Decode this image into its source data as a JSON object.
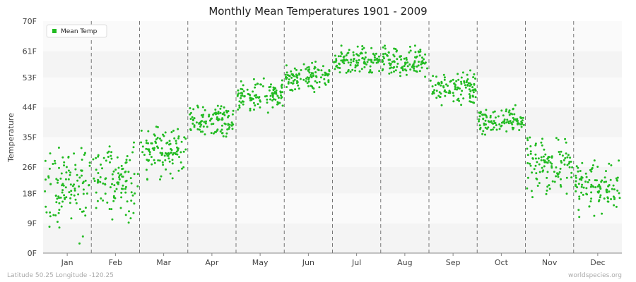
{
  "chart_data": {
    "type": "scatter",
    "title": "Monthly Mean Temperatures 1901 - 2009",
    "ylabel": "Temperature",
    "xlabel": "",
    "categories": [
      "Jan",
      "Feb",
      "Mar",
      "Apr",
      "May",
      "Jun",
      "Jul",
      "Aug",
      "Sep",
      "Oct",
      "Nov",
      "Dec"
    ],
    "y_ticks": [
      {
        "value": 0,
        "label": "0F"
      },
      {
        "value": 9,
        "label": "9F"
      },
      {
        "value": 18,
        "label": "18F"
      },
      {
        "value": 26,
        "label": "26F"
      },
      {
        "value": 35,
        "label": "35F"
      },
      {
        "value": 44,
        "label": "44F"
      },
      {
        "value": 53,
        "label": "53F"
      },
      {
        "value": 61,
        "label": "61F"
      },
      {
        "value": 70,
        "label": "70F"
      }
    ],
    "ylim": [
      0,
      70
    ],
    "grid": "alternating horizontal bands; dashed vertical month separators",
    "legend": {
      "position": "top-left",
      "entries": [
        "Mean Temp"
      ]
    },
    "series": [
      {
        "name": "Mean Temp",
        "color": "#22bb22",
        "years": [
          1901,
          2009
        ],
        "monthly_mean_estimates": [
          {
            "month": "Jan",
            "center": 20,
            "low": 0,
            "high": 32
          },
          {
            "month": "Feb",
            "center": 22,
            "low": 9,
            "high": 34
          },
          {
            "month": "Mar",
            "center": 31,
            "low": 22,
            "high": 39
          },
          {
            "month": "Apr",
            "center": 40,
            "low": 35,
            "high": 47
          },
          {
            "month": "May",
            "center": 47,
            "low": 41,
            "high": 53
          },
          {
            "month": "Jun",
            "center": 53,
            "low": 48,
            "high": 59
          },
          {
            "month": "Jul",
            "center": 58,
            "low": 54,
            "high": 64
          },
          {
            "month": "Aug",
            "center": 58,
            "low": 53,
            "high": 63
          },
          {
            "month": "Sep",
            "center": 50,
            "low": 43,
            "high": 56
          },
          {
            "month": "Oct",
            "center": 40,
            "low": 35,
            "high": 45
          },
          {
            "month": "Nov",
            "center": 27,
            "low": 14,
            "high": 35
          },
          {
            "month": "Dec",
            "center": 20,
            "low": 9,
            "high": 28
          }
        ]
      }
    ]
  },
  "footer": {
    "left": "Latitude 50.25 Longitude -120.25",
    "right": "worldspecies.org"
  }
}
